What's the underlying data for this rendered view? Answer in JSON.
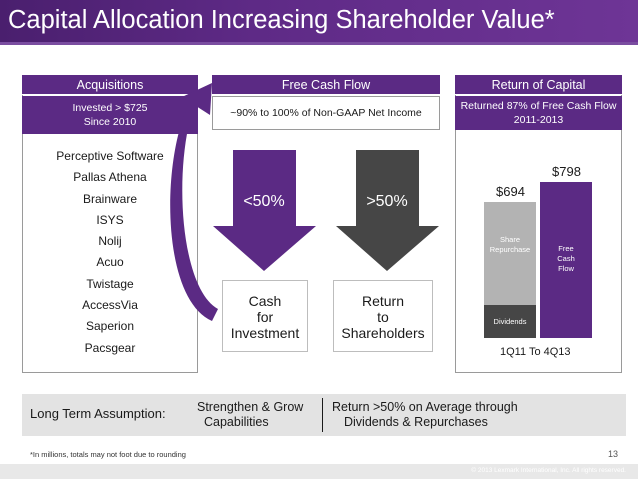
{
  "title": "Capital Allocation Increasing Shareholder Value*",
  "acquisitions": {
    "header": "Acquisitions",
    "invested_line1": "Invested > $725",
    "invested_line2": "Since 2010",
    "items": [
      "Perceptive Software",
      "Pallas Athena",
      "Brainware",
      "ISYS",
      "Nolij",
      "Acuo",
      "Twistage",
      "AccessVia",
      "Saperion",
      "Pacsgear"
    ]
  },
  "free_cash_flow": {
    "header": "Free Cash Flow",
    "description": "~90% to 100% of Non-GAAP Net Income",
    "left_arrow_label": "<50%",
    "right_arrow_label": ">50%",
    "left_result_line1": "Cash",
    "left_result_line2": "for",
    "left_result_line3": "Investment",
    "right_result_line1": "Return",
    "right_result_line2": "to",
    "right_result_line3": "Shareholders"
  },
  "return_of_capital": {
    "header": "Return of Capital",
    "returned_line1": "Returned  87% of Free Cash Flow",
    "returned_line2": "2011-2013"
  },
  "chart_data": {
    "type": "bar",
    "categories": [
      "Returned",
      "Free Cash Flow"
    ],
    "x_label": "1Q11 To 4Q13",
    "ylim": [
      0,
      900
    ],
    "bars": [
      {
        "total_label": "$694",
        "total": 694,
        "segments": [
          {
            "name": "Dividends",
            "value": 167,
            "color": "#464646"
          },
          {
            "name": "Share Repurchase",
            "value": 527,
            "color": "#b3b3b3"
          }
        ]
      },
      {
        "total_label": "$798",
        "total": 798,
        "segments": [
          {
            "name": "Free Cash Flow",
            "value": 798,
            "color": "#5b2a84"
          }
        ]
      }
    ],
    "segment_labels": {
      "share_line1": "Share",
      "share_line2": "Repurchase",
      "dividends": "Dividends",
      "fcf_line1": "Free",
      "fcf_line2": "Cash",
      "fcf_line3": "Flow"
    }
  },
  "long_term": {
    "label": "Long Term Assumption:",
    "col1_line1": "Strengthen & Grow",
    "col1_line2": "Capabilities",
    "col2_line1": "Return >50% on Average through",
    "col2_line2": "Dividends & Repurchases"
  },
  "footnote": "*In millions, totals may not foot due to rounding",
  "page_number": "13",
  "copyright": "© 2013 Lexmark International, Inc. All rights reserved.",
  "colors": {
    "brand_purple": "#5b2a84",
    "dark_gray": "#464646",
    "light_gray": "#b3b3b3"
  }
}
